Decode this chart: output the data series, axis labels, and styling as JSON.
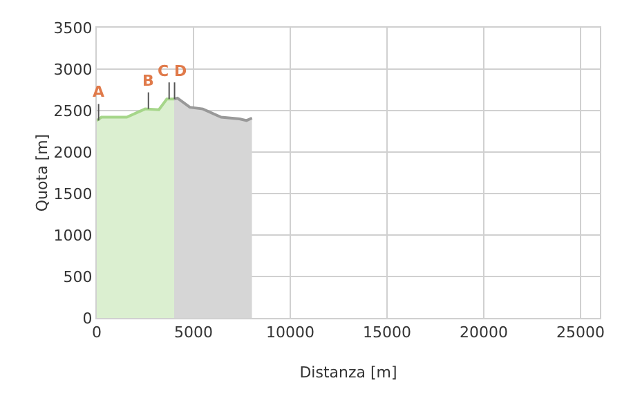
{
  "chart_data": {
    "type": "area",
    "xlabel": "Distanza [m]",
    "ylabel": "Quota [m]",
    "xlim": [
      0,
      26000
    ],
    "xticks": [
      0,
      5000,
      10000,
      15000,
      20000,
      25000
    ],
    "ylim": [
      0,
      3500
    ],
    "yticks": [
      0,
      500,
      1000,
      1500,
      2000,
      2500,
      3000,
      3500
    ],
    "grid": true,
    "series": [
      {
        "color": "#a6d68a",
        "x": [
          0,
          240,
          1550,
          2500,
          3210,
          3620,
          4000
        ],
        "values": [
          2380,
          2420,
          2420,
          2520,
          2510,
          2640,
          2640
        ]
      },
      {
        "color": "#999999",
        "x": [
          4000,
          4170,
          4810,
          5480,
          6430,
          7380,
          7740,
          8020
        ],
        "values": [
          2640,
          2650,
          2540,
          2520,
          2420,
          2400,
          2380,
          2410
        ]
      }
    ],
    "annotations": [
      {
        "text": "A",
        "x": 95,
        "y": 2380
      },
      {
        "text": "B",
        "x": 2670,
        "y": 2520
      },
      {
        "text": "C",
        "x": 3740,
        "y": 2640
      },
      {
        "text": "D",
        "x": 4020,
        "y": 2640
      }
    ]
  }
}
